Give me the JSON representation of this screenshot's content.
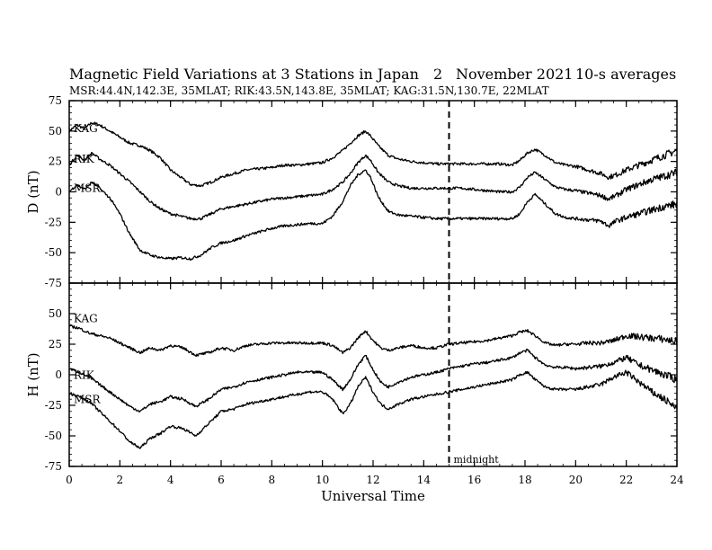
{
  "chart_data": {
    "type": "line",
    "title": "Magnetic Field Variations at 3 Stations in Japan",
    "date_day": "2",
    "date_month_year": "November 2021",
    "averaging": "10-s averages",
    "subtitle": "MSR:44.4N,142.3E, 35MLAT;  RIK:43.5N,143.8E, 35MLAT;  KAG:31.5N,130.7E, 22MLAT",
    "xlabel": "Universal Time",
    "xlim": [
      0,
      24
    ],
    "xticks": [
      "0",
      "2",
      "4",
      "6",
      "8",
      "10",
      "12",
      "14",
      "16",
      "18",
      "20",
      "22",
      "24"
    ],
    "annotation": {
      "x": 15,
      "label": "midnight"
    },
    "panels": [
      {
        "ylabel": "D (nT)",
        "ylim": [
          -75,
          75
        ],
        "yticks": [
          "75",
          "50",
          "25",
          "0",
          "-25",
          "-50",
          "-75"
        ],
        "series": [
          {
            "name": "KAG",
            "x": [
              0,
              0.3,
              0.6,
              0.9,
              1.2,
              1.6,
              2,
              2.4,
              2.8,
              3.2,
              3.6,
              4,
              4.4,
              4.8,
              5.2,
              5.6,
              6,
              6.5,
              7,
              7.5,
              8,
              8.5,
              9,
              9.5,
              10,
              10.4,
              10.8,
              11.1,
              11.4,
              11.7,
              11.9,
              12.2,
              12.6,
              13,
              13.5,
              14,
              14.5,
              15,
              15.5,
              16,
              16.5,
              17,
              17.5,
              17.8,
              18.1,
              18.4,
              18.8,
              19.2,
              19.6,
              20,
              20.5,
              21,
              21.3,
              21.6,
              22,
              22.5,
              23,
              23.5,
              24
            ],
            "y": [
              50,
              55,
              52,
              57,
              55,
              50,
              45,
              40,
              38,
              34,
              28,
              18,
              12,
              6,
              5,
              8,
              12,
              15,
              18,
              19,
              20,
              22,
              22,
              23,
              24,
              28,
              34,
              40,
              46,
              50,
              46,
              38,
              30,
              27,
              25,
              24,
              23,
              23,
              23,
              23,
              23,
              23,
              22,
              26,
              32,
              35,
              30,
              24,
              22,
              21,
              18,
              15,
              12,
              14,
              18,
              22,
              26,
              30,
              34
            ]
          },
          {
            "name": "RIK",
            "x": [
              0,
              0.3,
              0.6,
              0.9,
              1.2,
              1.6,
              2,
              2.4,
              2.8,
              3.2,
              3.6,
              4,
              4.4,
              4.8,
              5.2,
              5.6,
              6,
              6.5,
              7,
              7.5,
              8,
              8.5,
              9,
              9.5,
              10,
              10.4,
              10.8,
              11.1,
              11.4,
              11.7,
              11.9,
              12.2,
              12.6,
              13,
              13.5,
              14,
              14.5,
              15,
              15.5,
              16,
              16.5,
              17,
              17.5,
              17.8,
              18.1,
              18.4,
              18.8,
              19.2,
              19.6,
              20,
              20.5,
              21,
              21.3,
              21.6,
              22,
              22.5,
              23,
              23.5,
              24
            ],
            "y": [
              22,
              30,
              26,
              32,
              27,
              22,
              15,
              8,
              0,
              -8,
              -14,
              -18,
              -20,
              -22,
              -22,
              -18,
              -14,
              -12,
              -10,
              -8,
              -6,
              -5,
              -4,
              -3,
              -2,
              2,
              8,
              15,
              24,
              30,
              26,
              16,
              8,
              5,
              3,
              3,
              3,
              3,
              3,
              2,
              1,
              0,
              0,
              4,
              12,
              16,
              10,
              4,
              2,
              1,
              -1,
              -3,
              -6,
              -3,
              2,
              6,
              10,
              13,
              16
            ]
          },
          {
            "name": "MSR",
            "x": [
              0,
              0.3,
              0.6,
              0.9,
              1.2,
              1.6,
              2,
              2.4,
              2.8,
              3.2,
              3.6,
              4,
              4.4,
              4.8,
              5.2,
              5.6,
              6,
              6.5,
              7,
              7.5,
              8,
              8.5,
              9,
              9.5,
              10,
              10.4,
              10.8,
              11.1,
              11.4,
              11.7,
              11.9,
              12.2,
              12.6,
              13,
              13.5,
              14,
              14.5,
              15,
              15.5,
              16,
              16.5,
              17,
              17.5,
              17.8,
              18.1,
              18.4,
              18.8,
              19.2,
              19.6,
              20,
              20.5,
              21,
              21.3,
              21.6,
              22,
              22.5,
              23,
              23.5,
              24
            ],
            "y": [
              0,
              6,
              2,
              8,
              3,
              -5,
              -18,
              -35,
              -48,
              -52,
              -54,
              -55,
              -54,
              -55,
              -52,
              -46,
              -42,
              -40,
              -36,
              -33,
              -30,
              -28,
              -27,
              -26,
              -26,
              -20,
              -8,
              5,
              14,
              18,
              12,
              -4,
              -16,
              -19,
              -20,
              -21,
              -22,
              -22,
              -22,
              -22,
              -22,
              -22,
              -22,
              -18,
              -8,
              -2,
              -10,
              -18,
              -21,
              -22,
              -23,
              -24,
              -28,
              -24,
              -21,
              -18,
              -15,
              -12,
              -10
            ]
          }
        ]
      },
      {
        "ylabel": "H (nT)",
        "ylim": [
          -75,
          75
        ],
        "yticks": [
          "50",
          "25",
          "0",
          "-25",
          "-50",
          "-75"
        ],
        "series": [
          {
            "name": "KAG",
            "x": [
              0,
              0.4,
              0.8,
              1.2,
              1.6,
              2,
              2.4,
              2.8,
              3.2,
              3.6,
              4,
              4.5,
              5,
              5.5,
              6,
              6.5,
              7,
              7.5,
              8,
              8.5,
              9,
              9.5,
              10,
              10.4,
              10.8,
              11.1,
              11.4,
              11.7,
              12,
              12.3,
              12.6,
              13,
              13.5,
              14,
              14.5,
              15,
              15.5,
              16,
              16.5,
              17,
              17.5,
              17.8,
              18.1,
              18.4,
              18.8,
              19.2,
              19.6,
              20,
              20.5,
              21,
              21.5,
              22,
              22.5,
              23,
              23.5,
              24
            ],
            "y": [
              40,
              38,
              34,
              32,
              30,
              26,
              22,
              18,
              22,
              20,
              24,
              22,
              16,
              18,
              22,
              20,
              24,
              25,
              26,
              26,
              26,
              26,
              26,
              24,
              18,
              22,
              30,
              36,
              28,
              22,
              20,
              22,
              24,
              22,
              22,
              25,
              26,
              27,
              28,
              30,
              32,
              35,
              36,
              32,
              26,
              24,
              25,
              25,
              26,
              26,
              28,
              32,
              31,
              30,
              29,
              27
            ]
          },
          {
            "name": "RIK",
            "x": [
              0,
              0.4,
              0.8,
              1.2,
              1.6,
              2,
              2.4,
              2.8,
              3.2,
              3.6,
              4,
              4.5,
              5,
              5.5,
              6,
              6.5,
              7,
              7.5,
              8,
              8.5,
              9,
              9.5,
              10,
              10.4,
              10.8,
              11.1,
              11.4,
              11.7,
              12,
              12.3,
              12.6,
              13,
              13.5,
              14,
              14.5,
              15,
              15.5,
              16,
              16.5,
              17,
              17.5,
              17.8,
              18.1,
              18.4,
              18.8,
              19.2,
              19.6,
              20,
              20.5,
              21,
              21.5,
              22,
              22.5,
              23,
              23.5,
              24
            ],
            "y": [
              5,
              2,
              -2,
              -8,
              -14,
              -20,
              -26,
              -30,
              -24,
              -22,
              -18,
              -20,
              -26,
              -20,
              -12,
              -10,
              -6,
              -4,
              -2,
              0,
              2,
              2,
              2,
              -4,
              -12,
              -4,
              8,
              16,
              4,
              -6,
              -10,
              -6,
              -2,
              0,
              2,
              5,
              7,
              9,
              10,
              12,
              14,
              18,
              20,
              14,
              8,
              6,
              6,
              5,
              6,
              7,
              10,
              14,
              8,
              4,
              0,
              -4
            ]
          },
          {
            "name": "MSR",
            "x": [
              0,
              0.4,
              0.8,
              1.2,
              1.6,
              2,
              2.4,
              2.8,
              3.2,
              3.6,
              4,
              4.5,
              5,
              5.5,
              6,
              6.5,
              7,
              7.5,
              8,
              8.5,
              9,
              9.5,
              10,
              10.4,
              10.8,
              11.1,
              11.4,
              11.7,
              12,
              12.3,
              12.6,
              13,
              13.5,
              14,
              14.5,
              15,
              15.5,
              16,
              16.5,
              17,
              17.5,
              17.8,
              18.1,
              18.4,
              18.8,
              19.2,
              19.6,
              20,
              20.5,
              21,
              21.5,
              22,
              22.5,
              23,
              23.5,
              24
            ],
            "y": [
              -15,
              -18,
              -22,
              -30,
              -38,
              -46,
              -55,
              -60,
              -52,
              -48,
              -42,
              -44,
              -50,
              -40,
              -30,
              -28,
              -24,
              -22,
              -20,
              -18,
              -16,
              -14,
              -14,
              -20,
              -32,
              -24,
              -10,
              -2,
              -14,
              -24,
              -28,
              -24,
              -20,
              -18,
              -16,
              -14,
              -12,
              -10,
              -8,
              -6,
              -4,
              0,
              2,
              -4,
              -10,
              -12,
              -12,
              -12,
              -10,
              -8,
              -2,
              2,
              -6,
              -14,
              -20,
              -28
            ]
          }
        ]
      }
    ]
  }
}
